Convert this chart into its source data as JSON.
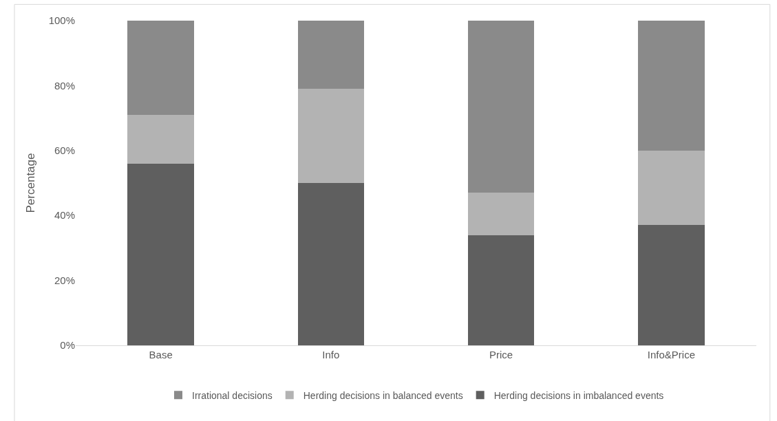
{
  "chart_data": {
    "type": "bar",
    "stacked": true,
    "ylabel": "Percentage",
    "categories": [
      "Base",
      "Info",
      "Price",
      "Info&Price"
    ],
    "series": [
      {
        "name": "Herding decisions in imbalanced events",
        "color": "#5f5f5f",
        "values": [
          56,
          50,
          34,
          37
        ]
      },
      {
        "name": "Herding decisions in balanced events",
        "color": "#b3b3b3",
        "values": [
          15,
          29,
          13,
          23
        ]
      },
      {
        "name": "Irrational decisions",
        "color": "#8a8a8a",
        "values": [
          29,
          21,
          53,
          40
        ]
      }
    ],
    "ylim": [
      0,
      100
    ],
    "yticks": [
      {
        "value": 0,
        "label": "0%"
      },
      {
        "value": 20,
        "label": "20%"
      },
      {
        "value": 40,
        "label": "40%"
      },
      {
        "value": 60,
        "label": "60%"
      },
      {
        "value": 80,
        "label": "80%"
      },
      {
        "value": 100,
        "label": "100%"
      }
    ],
    "grid": false,
    "legend": "bottom"
  }
}
